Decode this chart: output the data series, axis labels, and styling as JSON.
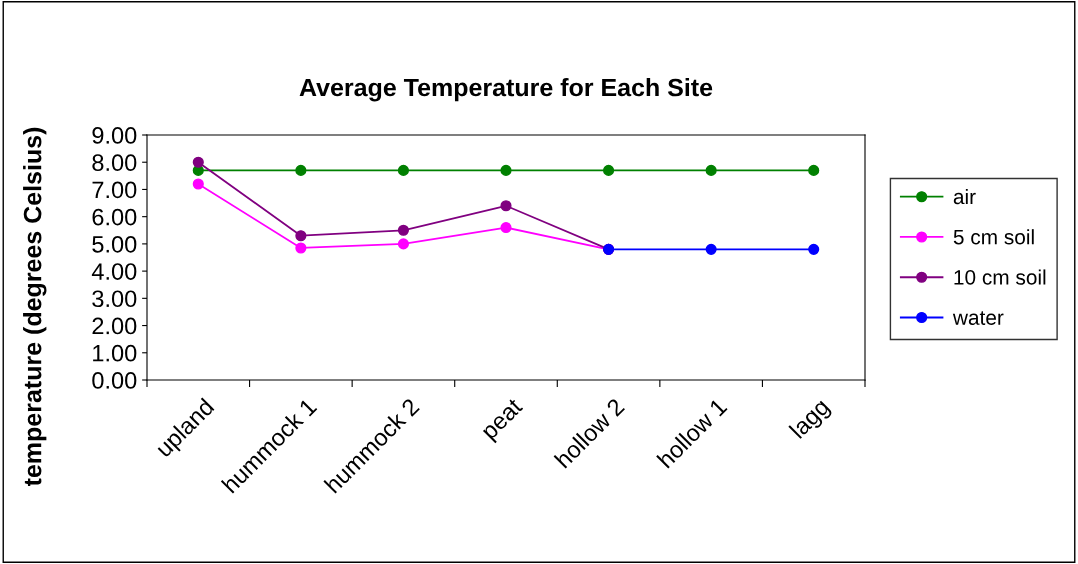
{
  "chart_data": {
    "type": "line",
    "title": "Average Temperature for Each Site",
    "ylabel": "temperature (degrees Celsius)",
    "categories": [
      "upland",
      "hummock 1",
      "hummock 2",
      "peat",
      "hollow 2",
      "hollow 1",
      "lagg"
    ],
    "series": [
      {
        "name": "air",
        "color": "#008000",
        "values": [
          7.7,
          7.7,
          7.7,
          7.7,
          7.7,
          7.7,
          7.7
        ]
      },
      {
        "name": "5 cm soil",
        "color": "#ff00ff",
        "values": [
          7.2,
          4.85,
          5.0,
          5.6,
          4.8,
          null,
          null
        ]
      },
      {
        "name": "10 cm soil",
        "color": "#800080",
        "values": [
          8.0,
          5.3,
          5.5,
          6.4,
          4.8,
          null,
          null
        ]
      },
      {
        "name": "water",
        "color": "#0000ff",
        "values": [
          null,
          null,
          null,
          null,
          4.8,
          4.8,
          4.8
        ]
      }
    ],
    "ylim": [
      0,
      9
    ],
    "yticks": [
      {
        "value": 0,
        "label": "0.00"
      },
      {
        "value": 1,
        "label": "1.00"
      },
      {
        "value": 2,
        "label": "2.00"
      },
      {
        "value": 3,
        "label": "3.00"
      },
      {
        "value": 4,
        "label": "4.00"
      },
      {
        "value": 5,
        "label": "5.00"
      },
      {
        "value": 6,
        "label": "6.00"
      },
      {
        "value": 7,
        "label": "7.00"
      },
      {
        "value": 8,
        "label": "8.00"
      },
      {
        "value": 9,
        "label": "9.00"
      }
    ],
    "grid": false,
    "legend": "right",
    "marker": "circle",
    "line_style": "solid"
  }
}
